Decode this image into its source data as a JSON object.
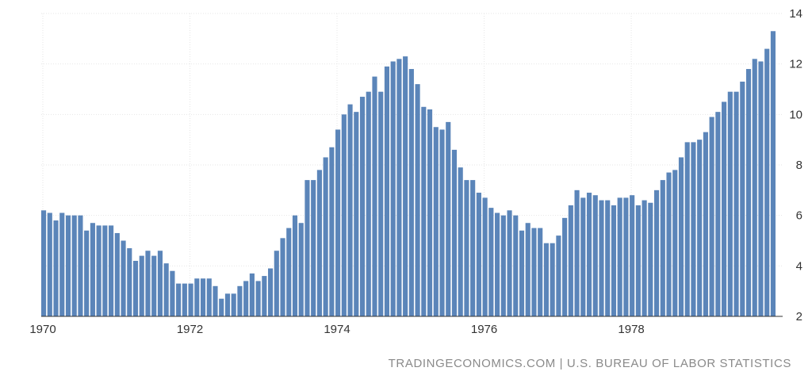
{
  "colors": {
    "bar": "#5b85b9",
    "grid": "#e6e6e6",
    "axis": "#333333",
    "source": "#8a8a8a"
  },
  "source": {
    "site": "TRADINGECONOMICS.COM",
    "separator": "|",
    "agency": "U.S. BUREAU OF LABOR STATISTICS"
  },
  "chart_data": {
    "type": "bar",
    "title": "",
    "xlabel": "",
    "ylabel": "",
    "ylim": [
      2,
      14
    ],
    "yticks": [
      2,
      4,
      6,
      8,
      10,
      12,
      14
    ],
    "xticks": [
      "1970",
      "1972",
      "1974",
      "1976",
      "1978"
    ],
    "grid": true,
    "y_axis_side": "right",
    "x_start": "1970-01",
    "x_frequency": "monthly",
    "values": [
      6.2,
      6.1,
      5.8,
      6.1,
      6.0,
      6.0,
      6.0,
      5.4,
      5.7,
      5.6,
      5.6,
      5.6,
      5.3,
      5.0,
      4.7,
      4.2,
      4.4,
      4.6,
      4.4,
      4.6,
      4.1,
      3.8,
      3.3,
      3.3,
      3.3,
      3.5,
      3.5,
      3.5,
      3.2,
      2.7,
      2.9,
      2.9,
      3.2,
      3.4,
      3.7,
      3.4,
      3.6,
      3.9,
      4.6,
      5.1,
      5.5,
      6.0,
      5.7,
      7.4,
      7.4,
      7.8,
      8.3,
      8.7,
      9.4,
      10.0,
      10.4,
      10.1,
      10.7,
      10.9,
      11.5,
      10.9,
      11.9,
      12.1,
      12.2,
      12.3,
      11.8,
      11.2,
      10.3,
      10.2,
      9.5,
      9.4,
      9.7,
      8.6,
      7.9,
      7.4,
      7.4,
      6.9,
      6.7,
      6.3,
      6.1,
      6.0,
      6.2,
      6.0,
      5.4,
      5.7,
      5.5,
      5.5,
      4.9,
      4.9,
      5.2,
      5.9,
      6.4,
      7.0,
      6.7,
      6.9,
      6.8,
      6.6,
      6.6,
      6.4,
      6.7,
      6.7,
      6.8,
      6.4,
      6.6,
      6.5,
      7.0,
      7.4,
      7.7,
      7.8,
      8.3,
      8.9,
      8.9,
      9.0,
      9.3,
      9.9,
      10.1,
      10.5,
      10.9,
      10.9,
      11.3,
      11.8,
      12.2,
      12.1,
      12.6,
      13.3
    ]
  }
}
